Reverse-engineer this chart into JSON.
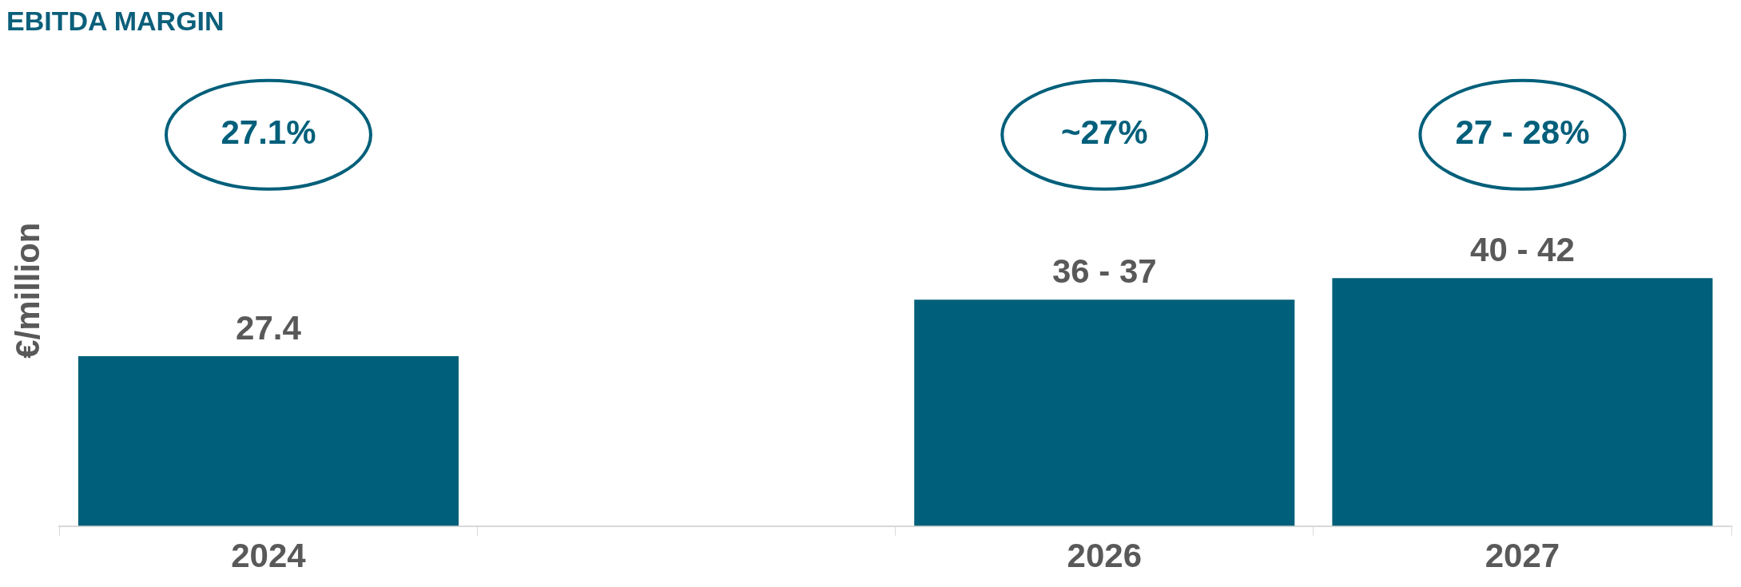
{
  "chart_data": {
    "type": "bar",
    "title": "EBITDA MARGIN",
    "ylabel": "€/million",
    "categories": [
      "2024",
      null,
      "2026",
      "2027"
    ],
    "values": [
      27.4,
      null,
      36.5,
      40
    ],
    "value_labels": [
      "27.4",
      null,
      "36 - 37",
      "40 - 42"
    ],
    "color": "#005f7a",
    "annotations": [
      "27.1%",
      "~27%",
      "27 - 28%"
    ],
    "grid": false,
    "legend": false
  }
}
